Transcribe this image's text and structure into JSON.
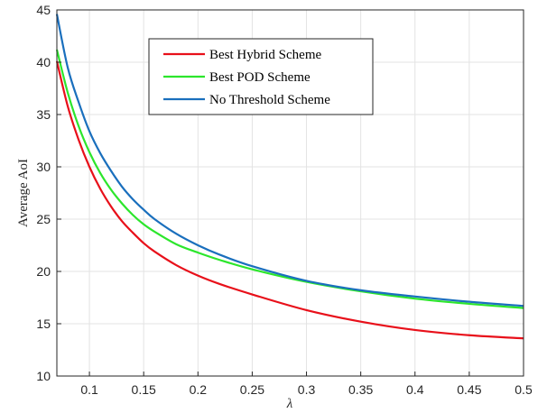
{
  "chart_data": {
    "type": "line",
    "title": "",
    "xlabel": "λ",
    "ylabel": "Average AoI",
    "xlim": [
      0.07,
      0.5
    ],
    "ylim": [
      10,
      45
    ],
    "x_ticks": [
      0.1,
      0.15,
      0.2,
      0.25,
      0.3,
      0.35,
      0.4,
      0.45,
      0.5
    ],
    "x_tick_labels": [
      "0.1",
      "0.15",
      "0.2",
      "0.25",
      "0.3",
      "0.35",
      "0.4",
      "0.45",
      "0.5"
    ],
    "y_ticks": [
      10,
      15,
      20,
      25,
      30,
      35,
      40,
      45
    ],
    "y_tick_labels": [
      "10",
      "15",
      "20",
      "25",
      "30",
      "35",
      "40",
      "45"
    ],
    "grid": true,
    "legend_position": "top-center",
    "x": [
      0.07,
      0.08,
      0.09,
      0.1,
      0.11,
      0.12,
      0.13,
      0.14,
      0.15,
      0.16,
      0.18,
      0.2,
      0.22,
      0.25,
      0.3,
      0.35,
      0.4,
      0.45,
      0.5
    ],
    "series": [
      {
        "name": "Best Hybrid Scheme",
        "color": "#e8101a",
        "values": [
          40.1,
          35.8,
          32.6,
          30.0,
          27.9,
          26.2,
          24.8,
          23.7,
          22.7,
          21.9,
          20.6,
          19.6,
          18.8,
          17.8,
          16.3,
          15.2,
          14.4,
          13.9,
          13.6
        ]
      },
      {
        "name": "Best POD Scheme",
        "color": "#2ce62c",
        "values": [
          41.2,
          37.1,
          33.9,
          31.4,
          29.4,
          27.8,
          26.5,
          25.4,
          24.5,
          23.8,
          22.6,
          21.8,
          21.1,
          20.2,
          19.0,
          18.1,
          17.4,
          16.9,
          16.5
        ]
      },
      {
        "name": "No Threshold Scheme",
        "color": "#1a6fbd",
        "values": [
          44.6,
          39.5,
          36.2,
          33.4,
          31.3,
          29.6,
          28.1,
          26.9,
          25.9,
          25.0,
          23.6,
          22.5,
          21.6,
          20.5,
          19.1,
          18.2,
          17.6,
          17.1,
          16.7
        ]
      }
    ]
  }
}
